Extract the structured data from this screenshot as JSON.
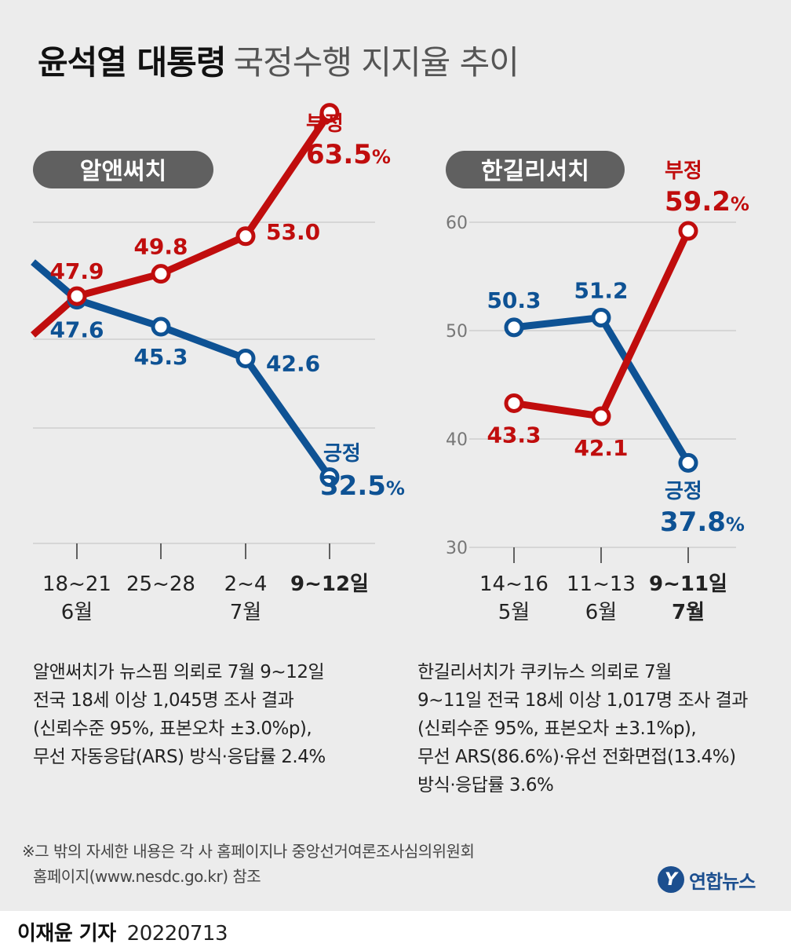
{
  "title": {
    "bold": "윤석열 대통령",
    "light": "국정수행 지지율 추이"
  },
  "colors": {
    "negative": "#c00d0d",
    "positive": "#0e5294",
    "badge": "#606060",
    "background": "#ececec"
  },
  "chart_data": [
    {
      "type": "line",
      "pollster": "알앤써치",
      "categories": [
        {
          "line1": "18~21",
          "line2": "6월",
          "bold": false
        },
        {
          "line1": "25~28",
          "line2": "",
          "bold": false
        },
        {
          "line1": "2~4",
          "line2": "7월",
          "bold": false
        },
        {
          "line1": "9~12일",
          "line2": "",
          "bold": true
        }
      ],
      "series": [
        {
          "name": "부정",
          "values": [
            47.9,
            49.8,
            53.0,
            63.5
          ],
          "labels": [
            "47.9",
            "49.8",
            "53.0",
            "63.5"
          ],
          "lead_in_from": 44.6
        },
        {
          "name": "긍정",
          "values": [
            47.6,
            45.3,
            42.6,
            32.5
          ],
          "labels": [
            "47.6",
            "45.3",
            "42.6",
            "32.5"
          ],
          "lead_in_from": 50.8
        }
      ],
      "ylim": [
        29,
        60
      ],
      "yticks": [],
      "grid": true
    },
    {
      "type": "line",
      "pollster": "한길리서치",
      "categories": [
        {
          "line1": "14~16",
          "line2": "5월",
          "bold": false
        },
        {
          "line1": "11~13",
          "line2": "6월",
          "bold": false
        },
        {
          "line1": "9~11일",
          "line2": "7월",
          "bold": true
        }
      ],
      "series": [
        {
          "name": "부정",
          "values": [
            43.3,
            42.1,
            59.2
          ],
          "labels": [
            "43.3",
            "42.1",
            "59.2"
          ]
        },
        {
          "name": "긍정",
          "values": [
            50.3,
            51.2,
            37.8
          ],
          "labels": [
            "50.3",
            "51.2",
            "37.8"
          ]
        }
      ],
      "ylim": [
        30,
        60
      ],
      "yticks": [
        30,
        40,
        50,
        60
      ],
      "grid": true
    }
  ],
  "notes": {
    "left": [
      "알앤써치가 뉴스핌 의뢰로 7월 9~12일",
      "전국 18세 이상 1,045명 조사 결과",
      "(신뢰수준 95%, 표본오차 ±3.0%p),",
      "무선 자동응답(ARS) 방식·응답률 2.4%"
    ],
    "right": [
      "한길리서치가 쿠키뉴스 의뢰로 7월",
      "9~11일 전국 18세 이상 1,017명 조사 결과",
      "(신뢰수준 95%, 표본오차 ±3.1%p),",
      "무선 ARS(86.6%)·유선 전화면접(13.4%)",
      "방식·응답률 3.6%"
    ]
  },
  "footnote": [
    "※그 밖의 자세한 내용은 각 사 홈페이지나 중앙선거여론조사심의위원회",
    "홈페이지(www.nesdc.go.kr) 참조"
  ],
  "logo": {
    "mark": "Y",
    "name": "연합뉴스"
  },
  "credit": {
    "name": "이재윤 기자",
    "date": "20220713"
  },
  "percent_sign": "%"
}
